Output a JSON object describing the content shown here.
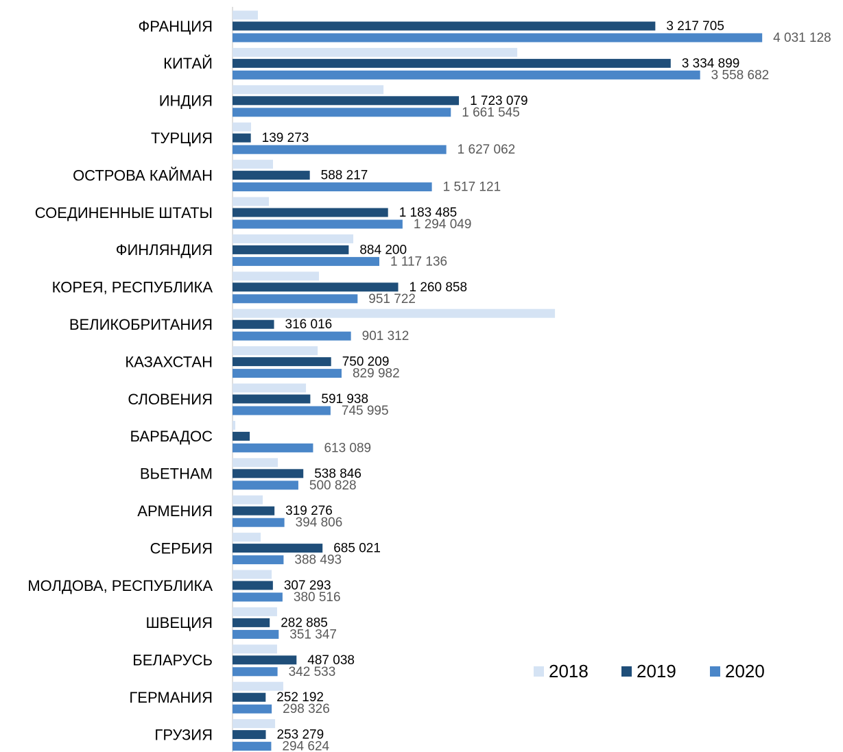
{
  "chart_data": {
    "type": "bar",
    "orientation": "horizontal",
    "categories": [
      "ФРАНЦИЯ",
      "КИТАЙ",
      "ИНДИЯ",
      "ТУРЦИЯ",
      "ОСТРОВА КАЙМАН",
      "СОЕДИНЕННЫЕ ШТАТЫ",
      "ФИНЛЯНДИЯ",
      "КОРЕЯ, РЕСПУБЛИКА",
      "ВЕЛИКОБРИТАНИЯ",
      "КАЗАХСТАН",
      "СЛОВЕНИЯ",
      "БАРБАДОС",
      "ВЬЕТНАМ",
      "АРМЕНИЯ",
      "СЕРБИЯ",
      "МОЛДОВА, РЕСПУБЛИКА",
      "ШВЕЦИЯ",
      "БЕЛАРУСЬ",
      "ГЕРМАНИЯ",
      "ГРУЗИЯ"
    ],
    "series": [
      {
        "name": "2018",
        "color": "#d5e3f4",
        "values": [
          193000,
          2167000,
          1149000,
          141000,
          308000,
          277000,
          919000,
          658000,
          2454000,
          648000,
          559000,
          21000,
          345000,
          230000,
          214000,
          298000,
          339000,
          339000,
          386000,
          324000
        ]
      },
      {
        "name": "2019",
        "color": "#1f4e79",
        "label_color": "#000000",
        "values": [
          3217705,
          3334899,
          1723079,
          139273,
          588217,
          1183485,
          884200,
          1260858,
          316016,
          750209,
          591938,
          131000,
          538846,
          319276,
          685021,
          307293,
          282885,
          487038,
          252192,
          253279
        ],
        "value_labels": [
          "3 217 705",
          "3 334 899",
          "1 723 079",
          "139 273",
          "588 217",
          "1 183 485",
          "884 200",
          "1 260 858",
          "316 016",
          "750 209",
          "591 938",
          null,
          "538 846",
          "319 276",
          "685 021",
          "307 293",
          "282 885",
          "487 038",
          "252 192",
          "253 279"
        ]
      },
      {
        "name": "2020",
        "color": "#4a86c8",
        "label_color": "#595959",
        "values": [
          4031128,
          3558682,
          1661545,
          1627062,
          1517121,
          1294049,
          1117136,
          951722,
          901312,
          829982,
          745995,
          613089,
          500828,
          394806,
          388493,
          380516,
          351347,
          342533,
          298326,
          294624
        ],
        "value_labels": [
          "4 031 128",
          "3 558 682",
          "1 661 545",
          "1 627 062",
          "1 517 121",
          "1 294 049",
          "1 117 136",
          "951 722",
          "901 312",
          "829 982",
          "745 995",
          "613 089",
          "500 828",
          "394 806",
          "388 493",
          "380 516",
          "351 347",
          "342 533",
          "298 326",
          "294 624"
        ]
      }
    ],
    "xlim": [
      0,
      4500000
    ],
    "legend": "lower right"
  }
}
